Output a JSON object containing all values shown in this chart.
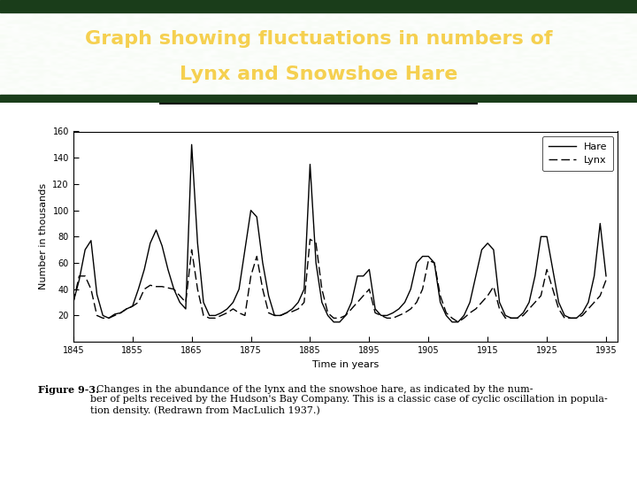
{
  "title_line1": "Graph showing fluctuations in numbers of",
  "title_line2": "Lynx and Snowshoe Hare",
  "title_bg_color": "#2d5c2e",
  "title_border_color": "#1a3d1a",
  "title_text_color": "#f5d050",
  "separator_line_color": "#000000",
  "plot_bg_color": "#ffffff",
  "fig_bg_color": "#ffffff",
  "xlabel": "Time in years",
  "ylabel": "Number in thousands",
  "ylim": [
    0,
    160
  ],
  "yticks": [
    20,
    40,
    60,
    80,
    100,
    120,
    140,
    160
  ],
  "xticks": [
    1845,
    1855,
    1865,
    1875,
    1885,
    1895,
    1905,
    1915,
    1925,
    1935
  ],
  "hare_label": "Hare",
  "lynx_label": "Lynx",
  "hare_years": [
    1845,
    1846,
    1847,
    1848,
    1849,
    1850,
    1851,
    1852,
    1853,
    1854,
    1855,
    1856,
    1857,
    1858,
    1859,
    1860,
    1861,
    1862,
    1863,
    1864,
    1865,
    1866,
    1867,
    1868,
    1869,
    1870,
    1871,
    1872,
    1873,
    1874,
    1875,
    1876,
    1877,
    1878,
    1879,
    1880,
    1881,
    1882,
    1883,
    1884,
    1885,
    1886,
    1887,
    1888,
    1889,
    1890,
    1891,
    1892,
    1893,
    1894,
    1895,
    1896,
    1897,
    1898,
    1899,
    1900,
    1901,
    1902,
    1903,
    1904,
    1905,
    1906,
    1907,
    1908,
    1909,
    1910,
    1911,
    1912,
    1913,
    1914,
    1915,
    1916,
    1917,
    1918,
    1919,
    1920,
    1921,
    1922,
    1923,
    1924,
    1925,
    1926,
    1927,
    1928,
    1929,
    1930,
    1931,
    1932,
    1933,
    1934,
    1935
  ],
  "hare_values": [
    30,
    47,
    70,
    77,
    36,
    20,
    18,
    21,
    22,
    25,
    27,
    40,
    55,
    75,
    85,
    73,
    55,
    40,
    30,
    25,
    150,
    75,
    30,
    20,
    20,
    22,
    25,
    30,
    40,
    70,
    100,
    95,
    60,
    35,
    20,
    20,
    22,
    25,
    30,
    40,
    135,
    60,
    30,
    20,
    15,
    15,
    20,
    30,
    50,
    50,
    55,
    25,
    20,
    20,
    22,
    25,
    30,
    40,
    60,
    65,
    65,
    60,
    30,
    20,
    15,
    15,
    20,
    30,
    50,
    70,
    75,
    70,
    30,
    20,
    18,
    18,
    22,
    30,
    50,
    80,
    80,
    55,
    30,
    20,
    18,
    18,
    22,
    30,
    50,
    90,
    50
  ],
  "lynx_years": [
    1845,
    1846,
    1847,
    1848,
    1849,
    1850,
    1851,
    1852,
    1853,
    1854,
    1855,
    1856,
    1857,
    1858,
    1859,
    1860,
    1861,
    1862,
    1863,
    1864,
    1865,
    1866,
    1867,
    1868,
    1869,
    1870,
    1871,
    1872,
    1873,
    1874,
    1875,
    1876,
    1877,
    1878,
    1879,
    1880,
    1881,
    1882,
    1883,
    1884,
    1885,
    1886,
    1887,
    1888,
    1889,
    1890,
    1891,
    1892,
    1893,
    1894,
    1895,
    1896,
    1897,
    1898,
    1899,
    1900,
    1901,
    1902,
    1903,
    1904,
    1905,
    1906,
    1907,
    1908,
    1909,
    1910,
    1911,
    1912,
    1913,
    1914,
    1915,
    1916,
    1917,
    1918,
    1919,
    1920,
    1921,
    1922,
    1923,
    1924,
    1925,
    1926,
    1927,
    1928,
    1929,
    1930,
    1931,
    1932,
    1933,
    1934,
    1935
  ],
  "lynx_values": [
    30,
    50,
    50,
    40,
    20,
    18,
    18,
    20,
    22,
    25,
    27,
    30,
    40,
    43,
    42,
    42,
    41,
    40,
    35,
    30,
    70,
    40,
    20,
    18,
    18,
    20,
    22,
    25,
    22,
    20,
    50,
    65,
    40,
    22,
    20,
    20,
    22,
    23,
    25,
    30,
    78,
    75,
    40,
    22,
    18,
    18,
    20,
    25,
    30,
    35,
    40,
    22,
    20,
    18,
    18,
    20,
    22,
    25,
    30,
    40,
    62,
    60,
    35,
    22,
    18,
    15,
    18,
    22,
    25,
    30,
    35,
    42,
    25,
    18,
    18,
    18,
    20,
    25,
    30,
    35,
    55,
    40,
    25,
    18,
    18,
    18,
    20,
    25,
    30,
    35,
    47
  ],
  "caption_bold": "Figure 9-3.",
  "caption_rest": "  Changes in the abundance of the lynx and the snowshoe hare, as indicated by the num-\nber of pelts received by the Hudson's Bay Company. This is a classic case of cyclic oscillation in popula-\ntion density. (Redrawn from MacLulich 1937.)",
  "title_fontsize": 16,
  "tick_fontsize": 7,
  "axis_label_fontsize": 8,
  "legend_fontsize": 8,
  "caption_fontsize": 8
}
